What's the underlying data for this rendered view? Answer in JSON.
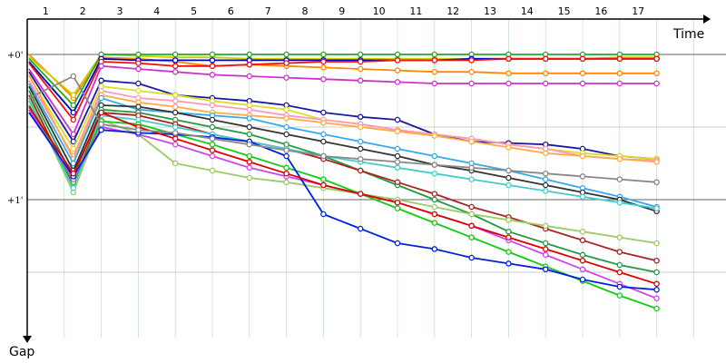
{
  "chart_data": {
    "type": "line",
    "x_axis_label": "Time",
    "y_axis_label": "Gap",
    "x_ticks": [
      "1",
      "2",
      "3",
      "4",
      "5",
      "6",
      "7",
      "8",
      "9",
      "10",
      "11",
      "12",
      "13",
      "14",
      "15",
      "16",
      "17"
    ],
    "y_ticks": [
      {
        "label": "+0'",
        "value": 0
      },
      {
        "label": "+1'",
        "value": 1
      }
    ],
    "ylim": [
      -0.15,
      1.95
    ],
    "grid": true,
    "series": [
      {
        "color": "#ff8800",
        "values": [
          0.0,
          0.3,
          0.02,
          0.03,
          0.05,
          0.08,
          0.07,
          0.08,
          0.09,
          0.1,
          0.11,
          0.12,
          0.12,
          0.13,
          0.13,
          0.13,
          0.13,
          0.13
        ]
      },
      {
        "color": "#cccc00",
        "values": [
          0.02,
          0.28,
          0.0,
          0.01,
          0.02,
          0.02,
          0.03,
          0.03,
          0.03,
          0.03,
          0.03,
          0.03,
          0.03,
          0.03,
          0.03,
          0.03,
          0.02,
          0.02
        ]
      },
      {
        "color": "#22aa22",
        "values": [
          0.03,
          0.35,
          0.0,
          0.0,
          0.0,
          0.0,
          0.0,
          0.0,
          0.0,
          0.0,
          0.0,
          0.0,
          0.0,
          0.0,
          0.0,
          0.0,
          0.0,
          0.0
        ]
      },
      {
        "color": "#0000cc",
        "values": [
          0.05,
          0.4,
          0.03,
          0.04,
          0.04,
          0.04,
          0.04,
          0.04,
          0.04,
          0.04,
          0.04,
          0.04,
          0.03,
          0.03,
          0.03,
          0.03,
          0.03,
          0.03
        ]
      },
      {
        "color": "#ee1111",
        "values": [
          0.06,
          0.45,
          0.05,
          0.06,
          0.08,
          0.08,
          0.07,
          0.06,
          0.05,
          0.05,
          0.04,
          0.04,
          0.04,
          0.03,
          0.03,
          0.03,
          0.03,
          0.03
        ]
      },
      {
        "color": "#cc33cc",
        "values": [
          0.1,
          0.55,
          0.08,
          0.1,
          0.12,
          0.14,
          0.15,
          0.16,
          0.17,
          0.18,
          0.19,
          0.2,
          0.2,
          0.2,
          0.2,
          0.2,
          0.2,
          0.2
        ]
      },
      {
        "color": "#1a1aa0",
        "values": [
          0.12,
          0.6,
          0.18,
          0.2,
          0.28,
          0.3,
          0.32,
          0.35,
          0.4,
          0.43,
          0.45,
          0.55,
          0.6,
          0.61,
          0.62,
          0.65,
          0.7,
          0.72
        ]
      },
      {
        "color": "#dddd22",
        "values": [
          0.15,
          0.65,
          0.22,
          0.25,
          0.28,
          0.32,
          0.35,
          0.38,
          0.45,
          0.48,
          0.52,
          0.55,
          0.58,
          0.62,
          0.65,
          0.68,
          0.7,
          0.72
        ]
      },
      {
        "color": "#ff99bb",
        "values": [
          0.18,
          0.7,
          0.25,
          0.3,
          0.32,
          0.35,
          0.38,
          0.42,
          0.45,
          0.48,
          0.52,
          0.55,
          0.58,
          0.62,
          0.65,
          0.7,
          0.72,
          0.73
        ]
      },
      {
        "color": "#ffaa44",
        "values": [
          0.14,
          0.72,
          0.28,
          0.33,
          0.36,
          0.4,
          0.42,
          0.44,
          0.47,
          0.5,
          0.53,
          0.56,
          0.6,
          0.64,
          0.68,
          0.7,
          0.72,
          0.74
        ]
      },
      {
        "color": "#33aaee",
        "values": [
          0.2,
          0.75,
          0.3,
          0.38,
          0.4,
          0.42,
          0.44,
          0.5,
          0.55,
          0.6,
          0.65,
          0.7,
          0.75,
          0.8,
          0.86,
          0.92,
          0.98,
          1.05
        ]
      },
      {
        "color": "#333333",
        "values": [
          0.22,
          0.8,
          0.35,
          0.36,
          0.4,
          0.45,
          0.5,
          0.55,
          0.6,
          0.65,
          0.7,
          0.76,
          0.8,
          0.85,
          0.9,
          0.95,
          1.0,
          1.08
        ]
      },
      {
        "color": "#229944",
        "values": [
          0.25,
          0.85,
          0.38,
          0.4,
          0.45,
          0.5,
          0.55,
          0.62,
          0.7,
          0.8,
          0.9,
          1.0,
          1.1,
          1.22,
          1.3,
          1.38,
          1.45,
          1.5
        ]
      },
      {
        "color": "#aa2222",
        "values": [
          0.28,
          0.9,
          0.4,
          0.42,
          0.48,
          0.55,
          0.6,
          0.65,
          0.72,
          0.8,
          0.88,
          0.96,
          1.05,
          1.12,
          1.2,
          1.28,
          1.36,
          1.42
        ]
      },
      {
        "color": "#99cc66",
        "values": [
          0.3,
          0.95,
          0.45,
          0.55,
          0.75,
          0.8,
          0.85,
          0.88,
          0.92,
          0.96,
          1.0,
          1.05,
          1.1,
          1.14,
          1.18,
          1.22,
          1.26,
          1.3
        ]
      },
      {
        "color": "#44cccc",
        "values": [
          0.32,
          0.92,
          0.42,
          0.45,
          0.5,
          0.55,
          0.6,
          0.65,
          0.7,
          0.74,
          0.78,
          0.82,
          0.86,
          0.9,
          0.94,
          0.98,
          1.02,
          1.06
        ]
      },
      {
        "color": "#11cc11",
        "values": [
          0.35,
          0.88,
          0.46,
          0.48,
          0.55,
          0.62,
          0.7,
          0.78,
          0.86,
          0.96,
          1.06,
          1.16,
          1.26,
          1.36,
          1.46,
          1.56,
          1.66,
          1.75
        ]
      },
      {
        "color": "#cc44ee",
        "values": [
          0.38,
          0.86,
          0.5,
          0.55,
          0.62,
          0.7,
          0.78,
          0.84,
          0.9,
          0.96,
          1.02,
          1.1,
          1.18,
          1.28,
          1.38,
          1.48,
          1.58,
          1.68
        ]
      },
      {
        "color": "#0022dd",
        "values": [
          0.4,
          0.84,
          0.52,
          0.54,
          0.55,
          0.57,
          0.6,
          0.7,
          1.1,
          1.2,
          1.3,
          1.34,
          1.4,
          1.44,
          1.48,
          1.55,
          1.6,
          1.62
        ]
      },
      {
        "color": "#dd0000",
        "values": [
          0.36,
          0.82,
          0.4,
          0.5,
          0.58,
          0.66,
          0.74,
          0.82,
          0.9,
          0.96,
          1.02,
          1.1,
          1.18,
          1.26,
          1.34,
          1.42,
          1.5,
          1.58
        ]
      },
      {
        "color": "#888888",
        "values": [
          0.3,
          0.15,
          0.48,
          0.52,
          0.54,
          0.58,
          0.62,
          0.66,
          0.7,
          0.72,
          0.74,
          0.76,
          0.78,
          0.8,
          0.82,
          0.84,
          0.86,
          0.88
        ]
      }
    ]
  }
}
